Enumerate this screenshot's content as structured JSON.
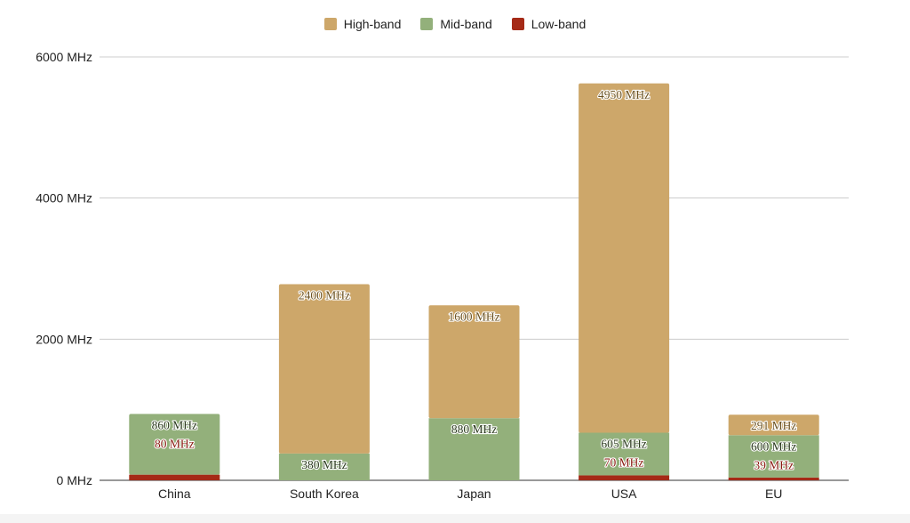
{
  "chart_data": {
    "type": "bar",
    "stacked": true,
    "categories": [
      "China",
      "South Korea",
      "Japan",
      "USA",
      "EU"
    ],
    "series": [
      {
        "name": "Low-band",
        "color": "#a52a17",
        "values": [
          80,
          0,
          0,
          70,
          39
        ],
        "labels": [
          "80 MHz",
          "",
          "",
          "70 MHz",
          "39 MHz"
        ]
      },
      {
        "name": "Mid-band",
        "color": "#93b07b",
        "values": [
          860,
          380,
          880,
          605,
          600
        ],
        "labels": [
          "860 MHz",
          "380 MHz",
          "880 MHz",
          "605 MHz",
          "600 MHz"
        ]
      },
      {
        "name": "High-band",
        "color": "#cda76a",
        "values": [
          0,
          2400,
          1600,
          4950,
          291
        ],
        "labels": [
          "",
          "2400 MHz",
          "1600 MHz",
          "4950 MHz",
          "291 MHz"
        ]
      }
    ],
    "legend_order": [
      "High-band",
      "Mid-band",
      "Low-band"
    ],
    "legend_position": "top-center",
    "ylim": [
      0,
      6000
    ],
    "yticks": [
      0,
      2000,
      4000,
      6000
    ],
    "ytick_labels": [
      "0 MHz",
      "2000 MHz",
      "4000 MHz",
      "6000 MHz"
    ],
    "grid": true,
    "title": "",
    "xlabel": "",
    "ylabel": ""
  }
}
